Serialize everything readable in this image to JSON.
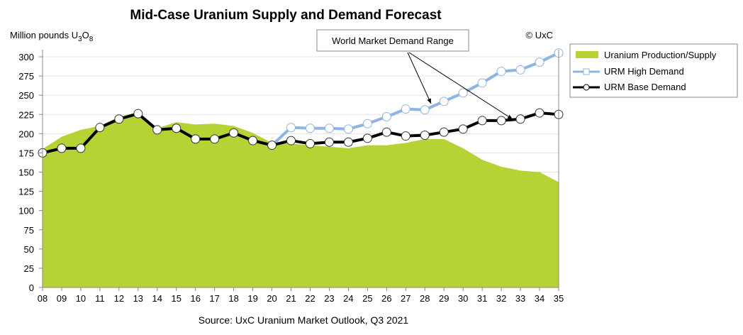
{
  "chart_data": {
    "type": "line",
    "title": "Mid-Case Uranium Supply and Demand Forecast",
    "ylabel": "Million pounds U3O8",
    "copyright": "© UxC",
    "source": "Source:  UxC Uranium Market Outlook, Q3 2021",
    "annotation": "World Market Demand Range",
    "ylim": [
      0,
      300
    ],
    "yticks": [
      0,
      25,
      50,
      75,
      100,
      125,
      150,
      175,
      200,
      225,
      250,
      275,
      300
    ],
    "categories": [
      "08",
      "09",
      "10",
      "11",
      "12",
      "13",
      "14",
      "15",
      "16",
      "17",
      "18",
      "19",
      "20",
      "21",
      "22",
      "23",
      "24",
      "25",
      "26",
      "27",
      "28",
      "29",
      "30",
      "31",
      "32",
      "33",
      "34",
      "35"
    ],
    "series": [
      {
        "name": "Uranium Production/Supply",
        "type": "area",
        "color": "#b5d334",
        "values": [
          180,
          196,
          205,
          210,
          222,
          228,
          207,
          215,
          212,
          213,
          210,
          201,
          188,
          187,
          185,
          183,
          181,
          185,
          185,
          188,
          193,
          193,
          181,
          166,
          157,
          152,
          150,
          137
        ]
      },
      {
        "name": "URM High Demand",
        "type": "line",
        "color": "#8db4e2",
        "values": [
          175,
          181,
          181,
          208,
          219,
          226,
          205,
          207,
          193,
          193,
          201,
          191,
          185,
          208,
          207,
          207,
          206,
          213,
          222,
          232,
          231,
          242,
          253,
          266,
          281,
          283,
          293,
          305
        ]
      },
      {
        "name": "URM Base Demand",
        "type": "line",
        "color": "#000000",
        "values": [
          175,
          181,
          181,
          208,
          219,
          226,
          205,
          207,
          193,
          193,
          201,
          191,
          185,
          191,
          187,
          189,
          189,
          194,
          202,
          197,
          198,
          202,
          206,
          217,
          217,
          219,
          227,
          225
        ]
      }
    ],
    "legend_position": "right"
  }
}
